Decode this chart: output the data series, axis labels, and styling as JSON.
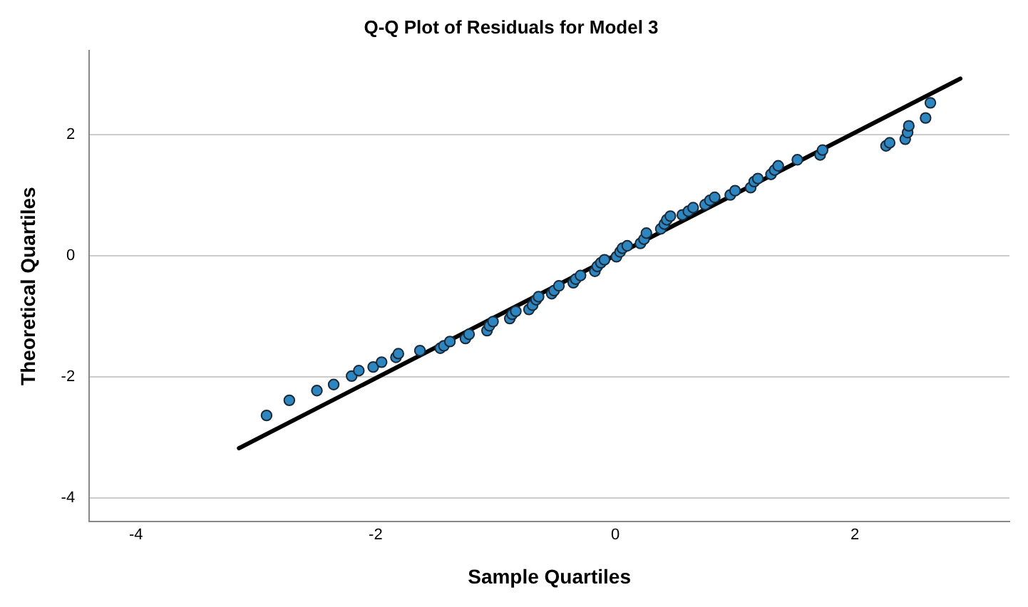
{
  "chart_data": {
    "type": "scatter",
    "title": "Q-Q Plot of Residuals for Model 3",
    "xlabel": "Sample Quartiles",
    "ylabel": "Theoretical Quartiles",
    "xlim": [
      -4.39,
      3.29
    ],
    "ylim": [
      -4.39,
      3.38
    ],
    "xticks": [
      -4,
      -2,
      0,
      2
    ],
    "yticks": [
      -4,
      -2,
      0,
      2
    ],
    "grid": "y",
    "legend": false,
    "series": [
      {
        "marker": "circle",
        "color": "#2e86c1",
        "x": [
          -2.91,
          -2.72,
          -2.49,
          -2.35,
          -2.2,
          -2.14,
          -2.02,
          -1.95,
          -1.83,
          -1.81,
          -1.63,
          -1.46,
          -1.43,
          -1.38,
          -1.25,
          -1.22,
          -1.07,
          -1.05,
          -1.02,
          -0.88,
          -0.86,
          -0.83,
          -0.72,
          -0.69,
          -0.66,
          -0.64,
          -0.53,
          -0.51,
          -0.47,
          -0.35,
          -0.33,
          -0.29,
          -0.17,
          -0.15,
          -0.12,
          -0.09,
          0.01,
          0.04,
          0.06,
          0.1,
          0.21,
          0.24,
          0.26,
          0.38,
          0.41,
          0.43,
          0.46,
          0.56,
          0.61,
          0.65,
          0.75,
          0.79,
          0.83,
          0.96,
          1.0,
          1.13,
          1.16,
          1.19,
          1.3,
          1.33,
          1.36,
          1.52,
          1.71,
          1.73,
          2.26,
          2.29,
          2.42,
          2.44,
          2.45,
          2.59,
          2.63
        ],
        "values": [
          -2.64,
          -2.39,
          -2.23,
          -2.13,
          -1.99,
          -1.9,
          -1.84,
          -1.76,
          -1.68,
          -1.62,
          -1.57,
          -1.53,
          -1.49,
          -1.42,
          -1.37,
          -1.3,
          -1.24,
          -1.16,
          -1.09,
          -1.04,
          -0.97,
          -0.92,
          -0.89,
          -0.82,
          -0.73,
          -0.68,
          -0.63,
          -0.58,
          -0.5,
          -0.45,
          -0.39,
          -0.33,
          -0.26,
          -0.18,
          -0.12,
          -0.07,
          -0.02,
          0.06,
          0.12,
          0.16,
          0.2,
          0.27,
          0.37,
          0.44,
          0.52,
          0.59,
          0.65,
          0.67,
          0.73,
          0.79,
          0.84,
          0.91,
          0.96,
          1.0,
          1.07,
          1.12,
          1.22,
          1.27,
          1.34,
          1.41,
          1.48,
          1.58,
          1.66,
          1.74,
          1.81,
          1.86,
          1.92,
          2.03,
          2.14,
          2.27,
          2.52
        ]
      },
      {
        "type": "line",
        "color": "#000000",
        "line_style": "solid",
        "x": [
          -3.14,
          2.88
        ],
        "values": [
          -3.18,
          2.92
        ]
      }
    ]
  }
}
